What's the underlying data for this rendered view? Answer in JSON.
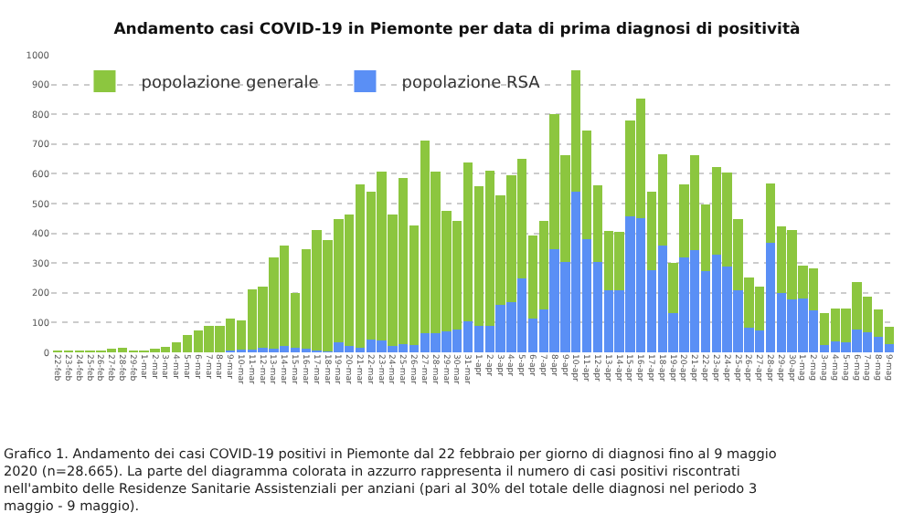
{
  "chart_data": {
    "type": "bar",
    "stacked": true,
    "title": "Andamento casi COVID-19 in Piemonte per data di prima diagnosi di positività",
    "categories": [
      "22-feb",
      "23-feb",
      "24-feb",
      "25-feb",
      "26-feb",
      "27-feb",
      "28-feb",
      "29-feb",
      "1-mar",
      "2-mar",
      "3-mar",
      "4-mar",
      "5-mar",
      "6-mar",
      "7-mar",
      "8-mar",
      "9-mar",
      "10-mar",
      "11-mar",
      "12-mar",
      "13-mar",
      "14-mar",
      "15-mar",
      "16-mar",
      "17-mar",
      "18-mar",
      "19-mar",
      "20-mar",
      "21-mar",
      "22-mar",
      "23-mar",
      "24-mar",
      "25-mar",
      "26-mar",
      "27-mar",
      "28-mar",
      "29-mar",
      "30-mar",
      "31-mar",
      "1-apr",
      "2-apr",
      "3-apr",
      "4-apr",
      "5-apr",
      "6-apr",
      "7-apr",
      "8-apr",
      "9-apr",
      "10-apr",
      "11-apr",
      "12-apr",
      "13-apr",
      "14-apr",
      "15-apr",
      "16-apr",
      "17-apr",
      "18-apr",
      "19-apr",
      "20-apr",
      "21-apr",
      "22-apr",
      "23-apr",
      "24-apr",
      "25-apr",
      "26-apr",
      "27-apr",
      "28-apr",
      "29-apr",
      "30-apr",
      "1-mag",
      "2-mag",
      "3-mag",
      "4-mag",
      "5-mag",
      "6-mag",
      "7-mag",
      "8-mag",
      "9-mag"
    ],
    "series": [
      {
        "name": "popolazione RSA",
        "color": "#5a8ff5",
        "values": [
          0,
          0,
          0,
          0,
          0,
          0,
          0,
          0,
          0,
          0,
          0,
          0,
          0,
          0,
          0,
          0,
          5,
          10,
          10,
          15,
          12,
          20,
          15,
          12,
          6,
          3,
          35,
          22,
          14,
          43,
          41,
          20,
          29,
          24,
          63,
          63,
          71,
          76,
          104,
          90,
          90,
          159,
          169,
          247,
          114,
          145,
          347,
          304,
          539,
          380,
          304,
          208,
          208,
          457,
          451,
          276,
          359,
          133,
          318,
          345,
          273,
          327,
          288,
          210,
          84,
          73,
          367,
          200,
          178,
          182,
          141,
          24,
          37,
          33,
          76,
          67,
          53,
          27
        ]
      },
      {
        "name": "popolazione generale",
        "color": "#8cc63f",
        "values": [
          1,
          2,
          2,
          3,
          3,
          12,
          14,
          5,
          5,
          12,
          18,
          33,
          57,
          75,
          90,
          90,
          110,
          98,
          202,
          207,
          306,
          338,
          183,
          335,
          406,
          375,
          414,
          441,
          551,
          498,
          567,
          443,
          557,
          403,
          649,
          543,
          405,
          365,
          533,
          467,
          520,
          368,
          427,
          404,
          278,
          298,
          453,
          359,
          408,
          365,
          257,
          200,
          198,
          323,
          402,
          265,
          308,
          167,
          247,
          318,
          223,
          297,
          316,
          237,
          169,
          149,
          200,
          224,
          234,
          110,
          141,
          107,
          110,
          114,
          161,
          121,
          92,
          59
        ]
      }
    ],
    "ylim": [
      0,
      1000
    ],
    "yticks": [
      0,
      100,
      200,
      300,
      400,
      500,
      600,
      700,
      800,
      900,
      1000
    ],
    "grid": "y",
    "legend": "top left",
    "annotations": [
      "Grafico 1. Andamento dei casi COVID-19 positivi in Piemonte dal 22 febbraio per giorno di diagnosi fino al 9 maggio 2020 (n=28.665). La parte del diagramma colorata in azzurro rappresenta il numero di casi positivi riscontrati nell'ambito delle Residenze Sanitarie Assistenziali per anziani (pari al 30% del totale delle diagnosi nel periodo 3 maggio - 9 maggio)."
    ]
  }
}
